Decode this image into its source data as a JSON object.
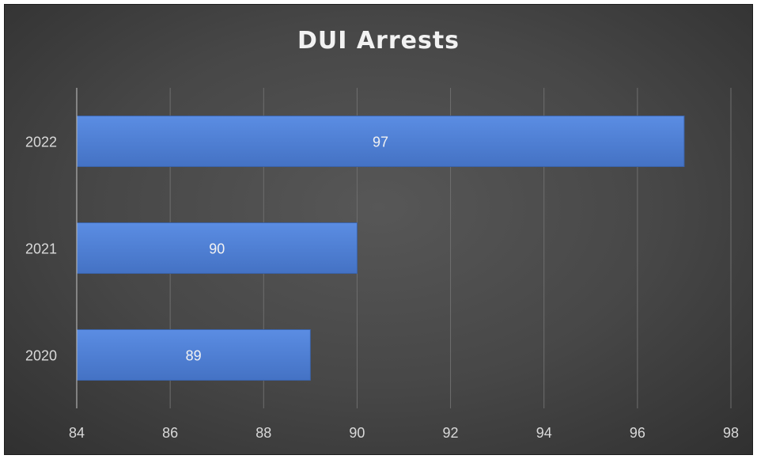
{
  "chart_data": {
    "type": "bar",
    "orientation": "horizontal",
    "title": "DUI Arrests",
    "categories": [
      "2022",
      "2021",
      "2020"
    ],
    "values": [
      97,
      90,
      89
    ],
    "data_labels": [
      "97",
      "90",
      "89"
    ],
    "xlim": [
      84,
      98
    ],
    "x_ticks": [
      84,
      86,
      88,
      90,
      92,
      94,
      96,
      98
    ],
    "x_tick_labels": [
      "84",
      "86",
      "88",
      "90",
      "92",
      "94",
      "96",
      "98"
    ],
    "xlabel": "",
    "ylabel": "",
    "grid": "vertical",
    "legend": "none",
    "colors": {
      "bar": "#4472c4",
      "bar_light": "#5b8de3",
      "gridline": "#6e6e6e",
      "axis": "#b0b0b0",
      "background": "#474747",
      "text": "#d9d9d9"
    }
  }
}
